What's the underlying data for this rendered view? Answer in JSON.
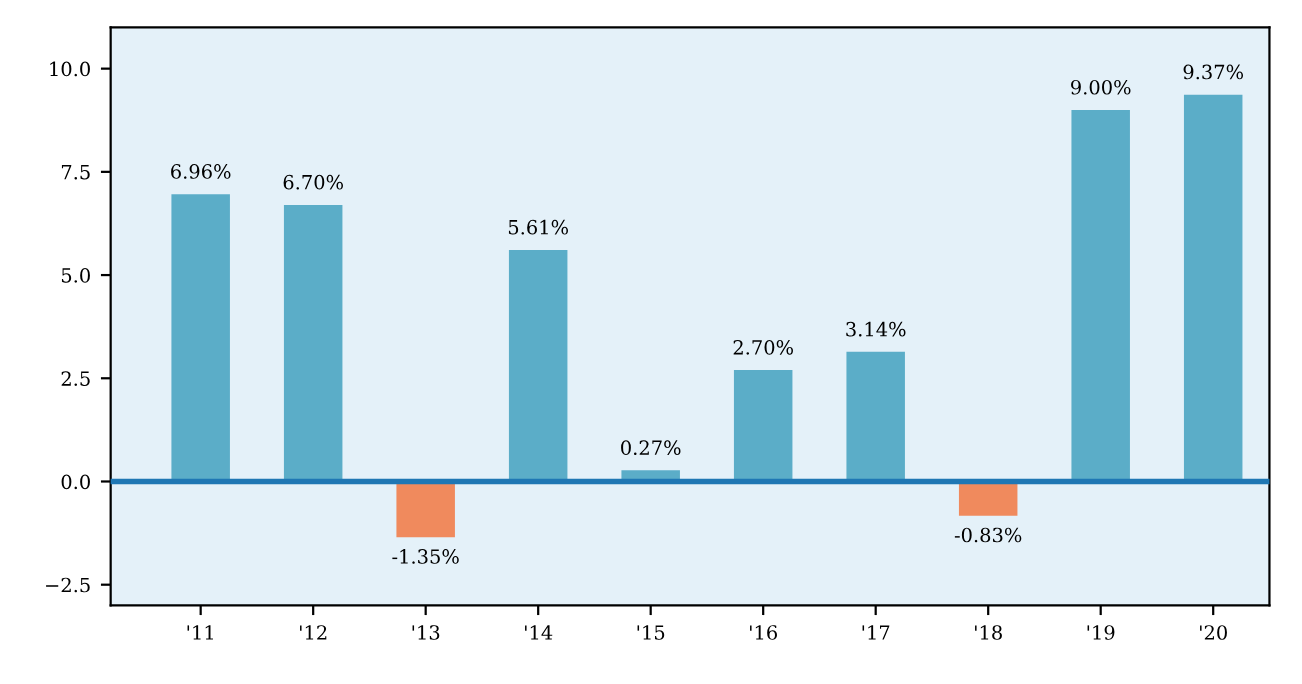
{
  "chart_data": {
    "type": "bar",
    "categories": [
      "'11",
      "'12",
      "'13",
      "'14",
      "'15",
      "'16",
      "'17",
      "'18",
      "'19",
      "'20"
    ],
    "values": [
      6.96,
      6.7,
      -1.35,
      5.61,
      0.27,
      2.7,
      3.14,
      -0.83,
      9.0,
      9.37
    ],
    "colors": [
      "#5badc8",
      "#5badc8",
      "#f08a5d",
      "#5badc8",
      "#5badc8",
      "#5badc8",
      "#5badc8",
      "#f08a5d",
      "#5badc8",
      "#5badc8"
    ],
    "value_labels": [
      "6.96%",
      "6.70%",
      "-1.35%",
      "5.61%",
      "0.27%",
      "2.70%",
      "3.14%",
      "-0.83%",
      "9.00%",
      "9.37%"
    ],
    "ylim": [
      -3,
      11
    ],
    "yticks": [
      {
        "value": -2.5,
        "label": "−2.5"
      },
      {
        "value": 0,
        "label": "0.0"
      },
      {
        "value": 2.5,
        "label": "2.5"
      },
      {
        "value": 5,
        "label": "5.0"
      },
      {
        "value": 7.5,
        "label": "7.5"
      },
      {
        "value": 10,
        "label": "10.0"
      }
    ],
    "ref_lines": [
      {
        "axis": "y",
        "value": 0,
        "color": "#1f77b4"
      }
    ],
    "grid": false,
    "legend": false
  }
}
